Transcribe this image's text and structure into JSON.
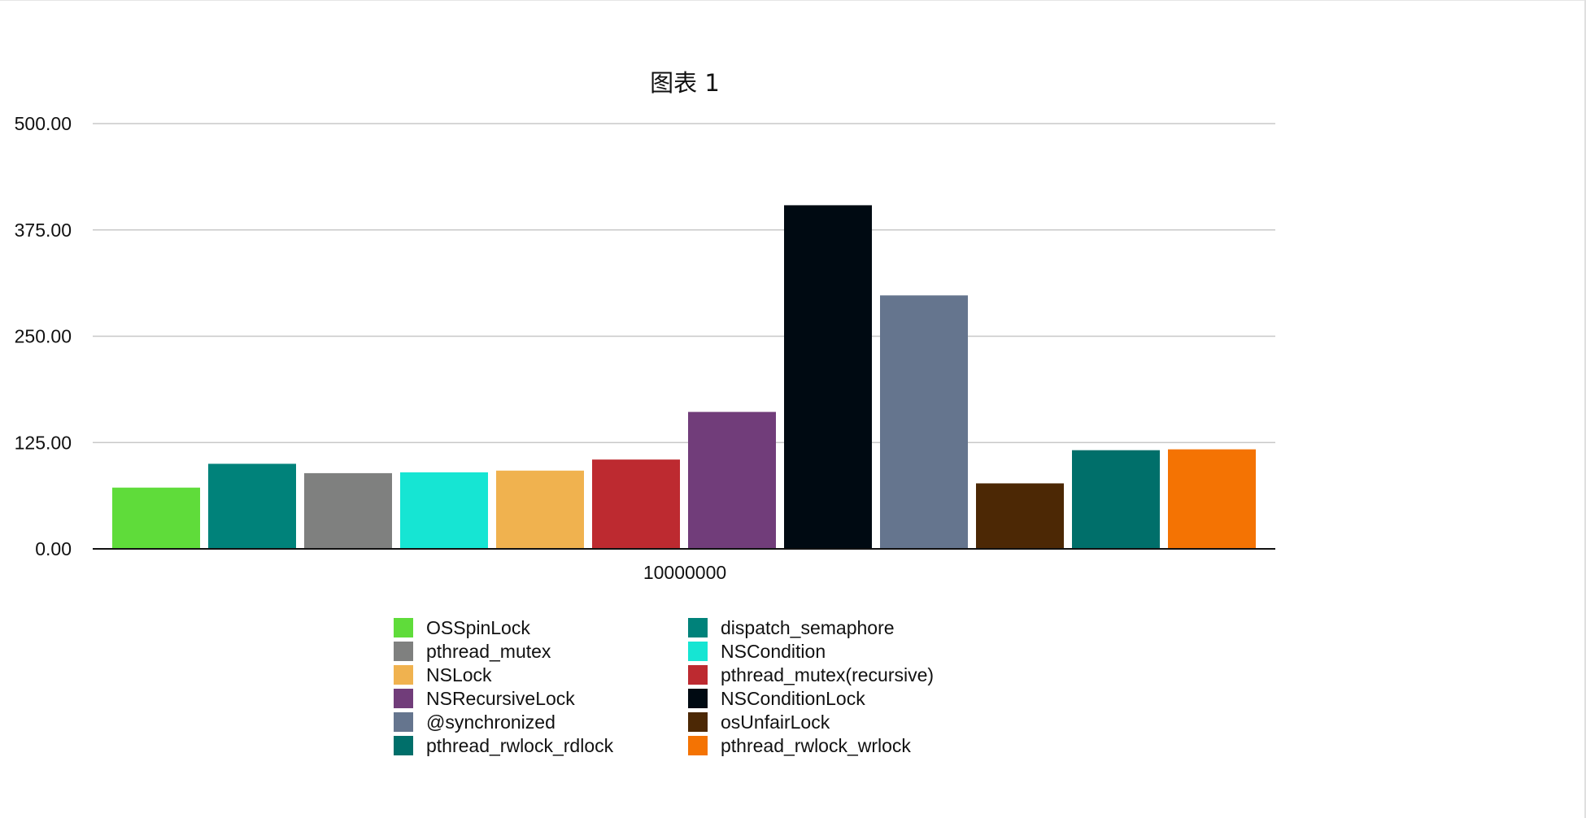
{
  "chart_data": {
    "type": "bar",
    "title": "图表 1",
    "categories": [
      "10000000"
    ],
    "ylim": [
      0,
      500
    ],
    "yticks": [
      "0.00",
      "125.00",
      "250.00",
      "375.00",
      "500.00"
    ],
    "grid": true,
    "legend_position": "bottom",
    "series": [
      {
        "name": "OSSpinLock",
        "values": [
          72
        ],
        "color": "#5fdc3a"
      },
      {
        "name": "dispatch_semaphore",
        "values": [
          100
        ],
        "color": "#00827a"
      },
      {
        "name": "pthread_mutex",
        "values": [
          89
        ],
        "color": "#7f807f"
      },
      {
        "name": "NSCondition",
        "values": [
          90
        ],
        "color": "#16e5d3"
      },
      {
        "name": "NSLock",
        "values": [
          92
        ],
        "color": "#f0b24f"
      },
      {
        "name": "pthread_mutex(recursive)",
        "values": [
          105
        ],
        "color": "#bd2a30"
      },
      {
        "name": "NSRecursiveLock",
        "values": [
          161
        ],
        "color": "#713d7a"
      },
      {
        "name": "NSConditionLock",
        "values": [
          404
        ],
        "color": "#000a12"
      },
      {
        "name": "@synchronized",
        "values": [
          298
        ],
        "color": "#65758e"
      },
      {
        "name": "osUnfairLock",
        "values": [
          77
        ],
        "color": "#4c2805"
      },
      {
        "name": "pthread_rwlock_rdlock",
        "values": [
          116
        ],
        "color": "#006f6a"
      },
      {
        "name": "pthread_rwlock_wrlock",
        "values": [
          117
        ],
        "color": "#f47303"
      }
    ]
  }
}
